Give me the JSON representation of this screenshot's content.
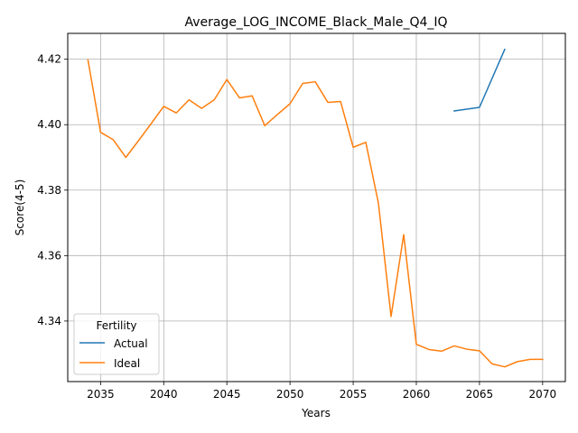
{
  "chart_data": {
    "type": "line",
    "title": "Average_LOG_INCOME_Black_Male_Q4_IQ",
    "xlabel": "Years",
    "ylabel": "Score(4-5)",
    "xlim": [
      2032.4,
      2071.8
    ],
    "ylim": [
      4.3215,
      4.4279
    ],
    "xticks": [
      2035,
      2040,
      2045,
      2050,
      2055,
      2060,
      2065,
      2070
    ],
    "yticks": [
      4.34,
      4.36,
      4.38,
      4.4,
      4.42
    ],
    "ytick_labels": [
      "4.34",
      "4.36",
      "4.38",
      "4.40",
      "4.42"
    ],
    "grid": true,
    "legend": {
      "title": "Fertility",
      "position": "lower-left"
    },
    "series": [
      {
        "name": "Actual",
        "color": "#1f77b4",
        "x": [
          2063,
          2065,
          2067
        ],
        "y": [
          4.4042,
          4.4053,
          4.423
        ]
      },
      {
        "name": "Ideal",
        "color": "#ff7f0e",
        "x": [
          2034,
          2035,
          2036,
          2037,
          2038,
          2039,
          2040,
          2041,
          2042,
          2043,
          2044,
          2045,
          2046,
          2047,
          2048,
          2049,
          2050,
          2051,
          2052,
          2053,
          2054,
          2055,
          2056,
          2057,
          2058,
          2059,
          2060,
          2061,
          2062,
          2063,
          2064,
          2065,
          2066,
          2067,
          2068,
          2069,
          2070
        ],
        "y": [
          4.4198,
          4.3977,
          4.3954,
          4.39,
          4.3951,
          4.4003,
          4.4056,
          4.4036,
          4.4076,
          4.405,
          4.4076,
          4.4138,
          4.4082,
          4.4088,
          4.3997,
          4.4031,
          4.4064,
          4.4126,
          4.4131,
          4.4068,
          4.4071,
          4.3931,
          4.3946,
          4.376,
          4.3414,
          4.3664,
          4.3329,
          4.3313,
          4.3308,
          4.3324,
          4.3314,
          4.3309,
          4.3269,
          4.326,
          4.3276,
          4.3283,
          4.3283
        ]
      }
    ]
  }
}
